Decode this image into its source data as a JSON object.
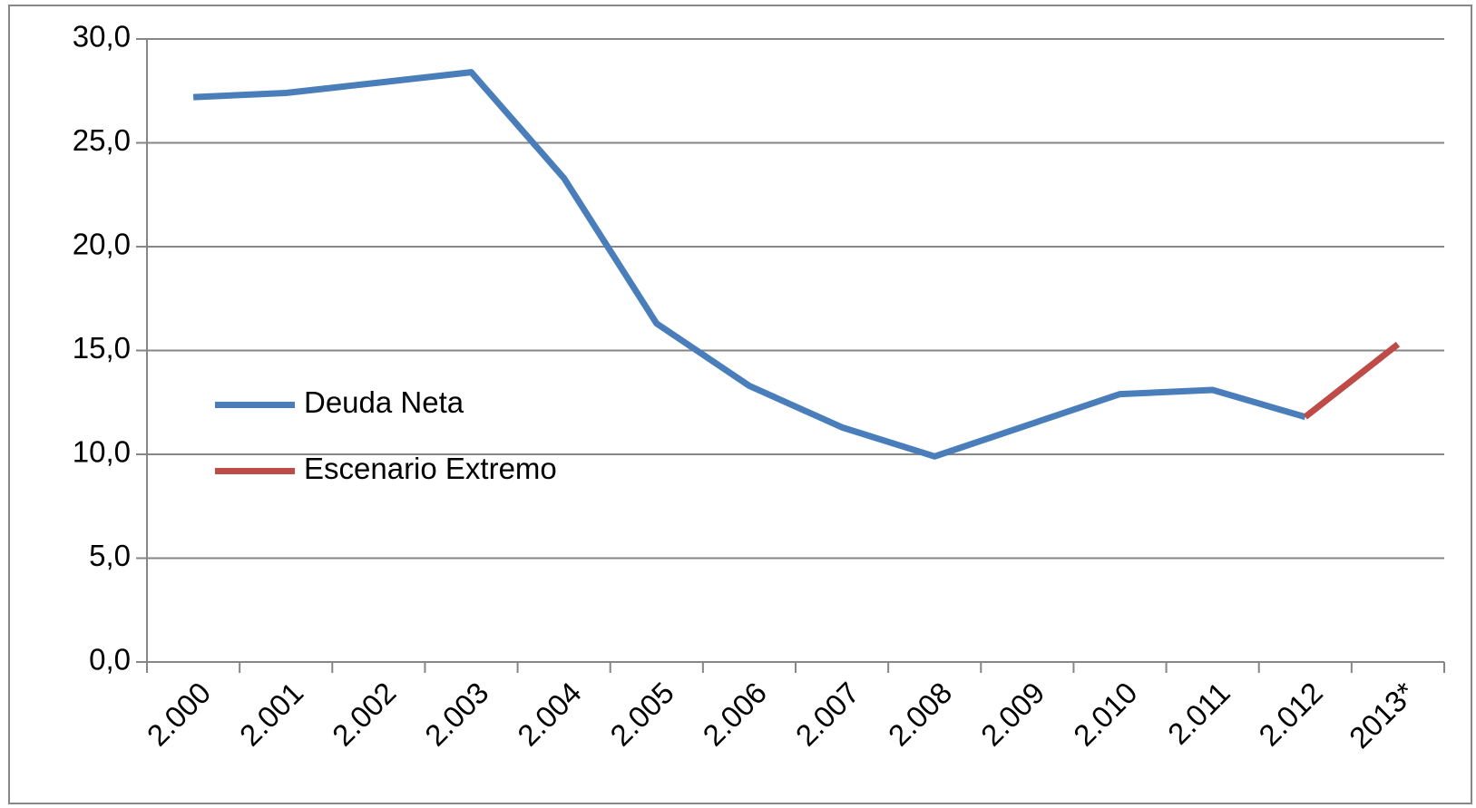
{
  "chart_data": {
    "type": "line",
    "categories": [
      "2.000",
      "2.001",
      "2.002",
      "2.003",
      "2.004",
      "2.005",
      "2.006",
      "2.007",
      "2.008",
      "2.009",
      "2.010",
      "2.011",
      "2.012",
      "2013*"
    ],
    "series": [
      {
        "name": "Deuda Neta",
        "color": "#4a7ebb",
        "values": [
          27.2,
          27.4,
          27.9,
          28.4,
          23.3,
          16.3,
          13.3,
          11.3,
          9.9,
          11.4,
          12.9,
          13.1,
          11.8,
          null
        ]
      },
      {
        "name": "Escenario Extremo",
        "color": "#be4b48",
        "values": [
          null,
          null,
          null,
          null,
          null,
          null,
          null,
          null,
          null,
          null,
          null,
          null,
          11.8,
          15.3
        ]
      }
    ],
    "ylim": [
      0,
      30
    ],
    "yticks": [
      {
        "value": 0,
        "label": "0,0"
      },
      {
        "value": 5,
        "label": "5,0"
      },
      {
        "value": 10,
        "label": "10,0"
      },
      {
        "value": 15,
        "label": "15,0"
      },
      {
        "value": 20,
        "label": "20,0"
      },
      {
        "value": 25,
        "label": "25,0"
      },
      {
        "value": 30,
        "label": "30,0"
      }
    ],
    "grid": true,
    "legend": "left"
  }
}
